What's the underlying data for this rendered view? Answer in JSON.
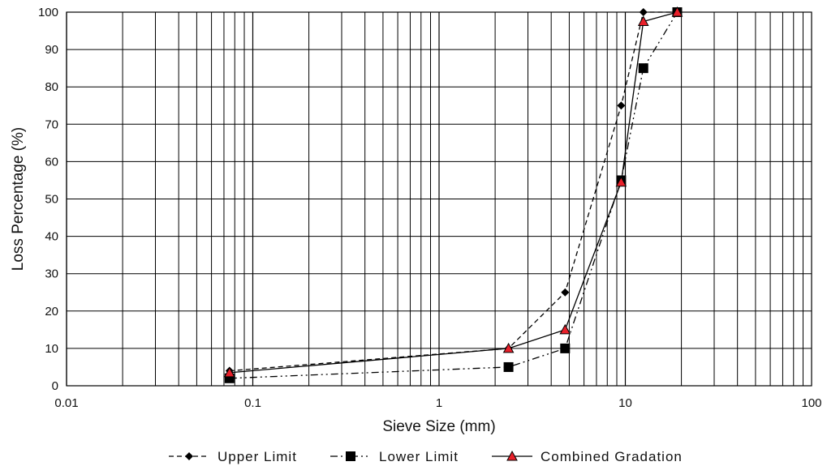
{
  "chart_data": {
    "type": "line",
    "title": "",
    "xlabel": "Sieve Size (mm)",
    "ylabel": "Loss Percentage (%)",
    "x_scale": "log",
    "xlim": [
      0.01,
      100
    ],
    "ylim": [
      0,
      100
    ],
    "x_tick_labels": [
      "0.01",
      "0.1",
      "1",
      "10",
      "100"
    ],
    "x_tick_values": [
      0.01,
      0.1,
      1,
      10,
      100
    ],
    "y_tick_labels": [
      "0",
      "10",
      "20",
      "30",
      "40",
      "50",
      "60",
      "70",
      "80",
      "90",
      "100"
    ],
    "y_tick_values": [
      0,
      10,
      20,
      30,
      40,
      50,
      60,
      70,
      80,
      90,
      100
    ],
    "grid": true,
    "legend_position": "bottom",
    "series": [
      {
        "name": "Upper Limit",
        "marker": "diamond",
        "line_style": "dashed",
        "color": "#000000",
        "x": [
          0.075,
          2.36,
          4.75,
          9.5,
          12.5,
          19
        ],
        "y": [
          4,
          10,
          25,
          75,
          100,
          100
        ]
      },
      {
        "name": "Lower Limit",
        "marker": "square",
        "line_style": "dash-dot-dot",
        "color": "#000000",
        "x": [
          0.075,
          2.36,
          4.75,
          9.5,
          12.5,
          19
        ],
        "y": [
          2,
          5,
          10,
          55,
          85,
          100
        ]
      },
      {
        "name": "Combined Gradation",
        "marker": "triangle",
        "line_style": "solid",
        "color": "#000000",
        "marker_fill": "#e8202a",
        "x": [
          0.075,
          2.36,
          4.75,
          9.5,
          12.5,
          19
        ],
        "y": [
          3.5,
          10,
          15,
          54.5,
          97.5,
          100
        ]
      }
    ]
  }
}
